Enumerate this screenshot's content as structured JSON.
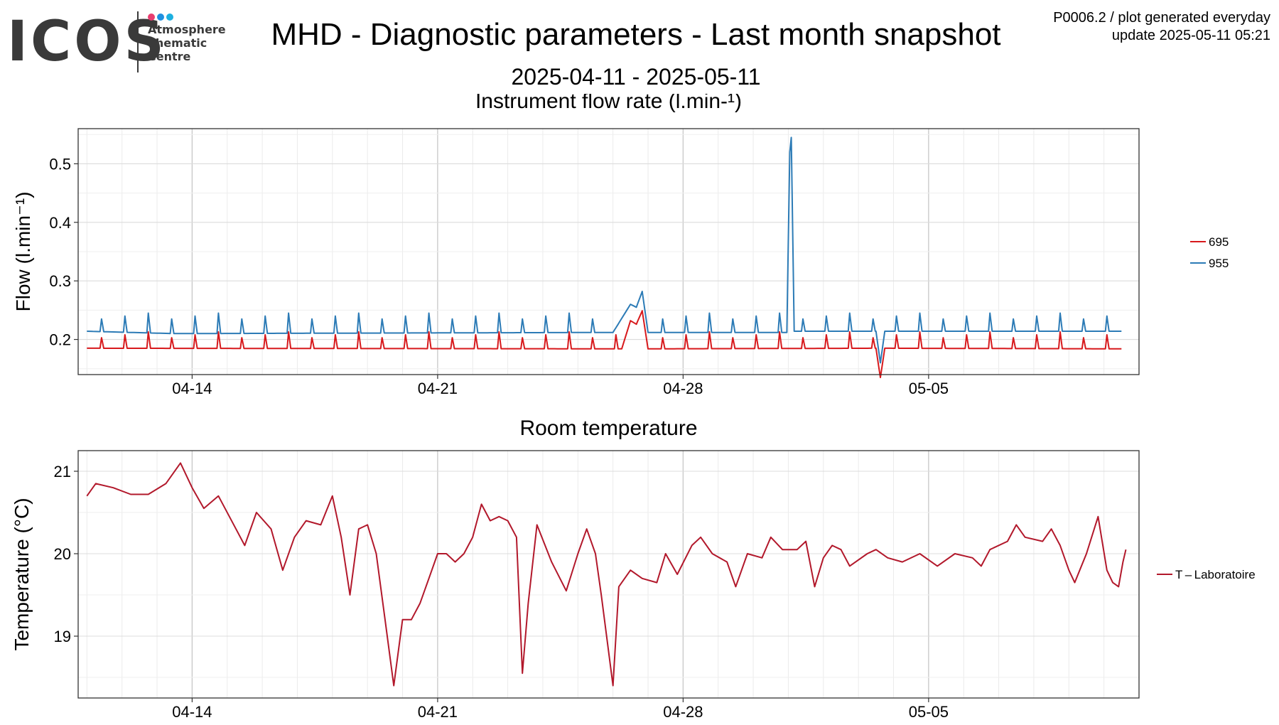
{
  "header": {
    "logo": {
      "text": "ICOS",
      "lines": [
        "Atmosphere",
        "Thematic",
        "Centre"
      ],
      "dot_colors": [
        "#e83e70",
        "#1e90e0",
        "#1cb0e0"
      ]
    },
    "title": "MHD - Diagnostic parameters - Last month snapshot",
    "date_range": "2025-04-11 - 2025-05-11",
    "meta_line1": "P0006.2 / plot generated everyday",
    "meta_line2": "update  2025-05-11 05:21"
  },
  "chart_data": [
    {
      "type": "line",
      "title": "Instrument flow rate (l.min-¹)",
      "xlabel": "",
      "ylabel": "Flow (l.min⁻¹)",
      "x_ticks": [
        "04-14",
        "04-21",
        "04-28",
        "05-05"
      ],
      "y_ticks": [
        "0.2",
        "0.3",
        "0.4",
        "0.5"
      ],
      "xlim": [
        "2025-04-10T18:00",
        "2025-05-11T00:00"
      ],
      "ylim": [
        0.14,
        0.56
      ],
      "grid": true,
      "legend_position": "right",
      "series": [
        {
          "name": "695",
          "color": "#d7191c",
          "base_start": 0.185,
          "base_end": 0.184,
          "spike": 0.208,
          "points": [
            [
              "2025-04-11T00:00",
              0.185
            ],
            [
              "2025-04-26T06:00",
              0.184
            ],
            [
              "2025-04-26T12:00",
              0.232
            ],
            [
              "2025-04-26T16:00",
              0.226
            ],
            [
              "2025-04-26T20:00",
              0.249
            ],
            [
              "2025-04-27T00:00",
              0.184
            ],
            [
              "2025-05-03T12:00",
              0.185
            ],
            [
              "2025-05-03T15:00",
              0.135
            ],
            [
              "2025-05-03T18:00",
              0.185
            ],
            [
              "2025-05-10T12:00",
              0.184
            ]
          ]
        },
        {
          "name": "955",
          "color": "#2c7bb6",
          "base_start": 0.214,
          "base_end": 0.214,
          "spike": 0.24,
          "points": [
            [
              "2025-04-11T00:00",
              0.214
            ],
            [
              "2025-04-13T12:00",
              0.21
            ],
            [
              "2025-04-26T00:00",
              0.212
            ],
            [
              "2025-04-26T12:00",
              0.26
            ],
            [
              "2025-04-26T16:00",
              0.255
            ],
            [
              "2025-04-26T20:00",
              0.282
            ],
            [
              "2025-04-27T00:00",
              0.212
            ],
            [
              "2025-04-30T23:00",
              0.212
            ],
            [
              "2025-05-01T01:00",
              0.52
            ],
            [
              "2025-05-01T02:00",
              0.545
            ],
            [
              "2025-05-01T04:00",
              0.214
            ],
            [
              "2025-05-03T12:00",
              0.214
            ],
            [
              "2025-05-03T15:00",
              0.16
            ],
            [
              "2025-05-03T18:00",
              0.214
            ],
            [
              "2025-05-10T12:00",
              0.214
            ]
          ]
        }
      ]
    },
    {
      "type": "line",
      "title": "Room temperature",
      "xlabel": "",
      "ylabel": "Temperature (°C)",
      "x_ticks": [
        "04-14",
        "04-21",
        "04-28",
        "05-05"
      ],
      "y_ticks": [
        "19",
        "20",
        "21"
      ],
      "xlim": [
        "2025-04-10T18:00",
        "2025-05-11T00:00"
      ],
      "ylim": [
        18.25,
        21.25
      ],
      "grid": true,
      "legend_position": "right",
      "series": [
        {
          "name": "T – Laboratoire",
          "color": "#b2182b",
          "points": [
            [
              "2025-04-11T00:00",
              20.7
            ],
            [
              "2025-04-11T06:00",
              20.85
            ],
            [
              "2025-04-11T18:00",
              20.8
            ],
            [
              "2025-04-12T06:00",
              20.72
            ],
            [
              "2025-04-12T18:00",
              20.72
            ],
            [
              "2025-04-13T06:00",
              20.85
            ],
            [
              "2025-04-13T16:00",
              21.1
            ],
            [
              "2025-04-14T00:00",
              20.8
            ],
            [
              "2025-04-14T08:00",
              20.55
            ],
            [
              "2025-04-14T18:00",
              20.7
            ],
            [
              "2025-04-15T06:00",
              20.3
            ],
            [
              "2025-04-15T12:00",
              20.1
            ],
            [
              "2025-04-15T20:00",
              20.5
            ],
            [
              "2025-04-16T06:00",
              20.3
            ],
            [
              "2025-04-16T14:00",
              19.8
            ],
            [
              "2025-04-16T22:00",
              20.2
            ],
            [
              "2025-04-17T06:00",
              20.4
            ],
            [
              "2025-04-17T16:00",
              20.35
            ],
            [
              "2025-04-18T00:00",
              20.7
            ],
            [
              "2025-04-18T06:00",
              20.2
            ],
            [
              "2025-04-18T12:00",
              19.5
            ],
            [
              "2025-04-18T18:00",
              20.3
            ],
            [
              "2025-04-19T00:00",
              20.35
            ],
            [
              "2025-04-19T06:00",
              20.0
            ],
            [
              "2025-04-19T12:00",
              19.2
            ],
            [
              "2025-04-19T18:00",
              18.4
            ],
            [
              "2025-04-20T00:00",
              19.2
            ],
            [
              "2025-04-20T06:00",
              19.2
            ],
            [
              "2025-04-20T12:00",
              19.4
            ],
            [
              "2025-04-20T18:00",
              19.7
            ],
            [
              "2025-04-21T00:00",
              20.0
            ],
            [
              "2025-04-21T06:00",
              20.0
            ],
            [
              "2025-04-21T12:00",
              19.9
            ],
            [
              "2025-04-21T18:00",
              20.0
            ],
            [
              "2025-04-22T00:00",
              20.2
            ],
            [
              "2025-04-22T06:00",
              20.6
            ],
            [
              "2025-04-22T12:00",
              20.4
            ],
            [
              "2025-04-22T18:00",
              20.45
            ],
            [
              "2025-04-23T00:00",
              20.4
            ],
            [
              "2025-04-23T06:00",
              20.2
            ],
            [
              "2025-04-23T10:00",
              18.55
            ],
            [
              "2025-04-23T14:00",
              19.4
            ],
            [
              "2025-04-23T20:00",
              20.35
            ],
            [
              "2025-04-24T06:00",
              19.9
            ],
            [
              "2025-04-24T16:00",
              19.55
            ],
            [
              "2025-04-25T00:00",
              20.0
            ],
            [
              "2025-04-25T06:00",
              20.3
            ],
            [
              "2025-04-25T12:00",
              20.0
            ],
            [
              "2025-04-25T16:00",
              19.5
            ],
            [
              "2025-04-26T00:00",
              18.4
            ],
            [
              "2025-04-26T04:00",
              19.6
            ],
            [
              "2025-04-26T12:00",
              19.8
            ],
            [
              "2025-04-26T20:00",
              19.7
            ],
            [
              "2025-04-27T06:00",
              19.65
            ],
            [
              "2025-04-27T12:00",
              20.0
            ],
            [
              "2025-04-27T20:00",
              19.75
            ],
            [
              "2025-04-28T06:00",
              20.1
            ],
            [
              "2025-04-28T12:00",
              20.2
            ],
            [
              "2025-04-28T20:00",
              20.0
            ],
            [
              "2025-04-29T06:00",
              19.9
            ],
            [
              "2025-04-29T12:00",
              19.6
            ],
            [
              "2025-04-29T20:00",
              20.0
            ],
            [
              "2025-04-30T06:00",
              19.95
            ],
            [
              "2025-04-30T12:00",
              20.2
            ],
            [
              "2025-04-30T20:00",
              20.05
            ],
            [
              "2025-05-01T06:00",
              20.05
            ],
            [
              "2025-05-01T12:00",
              20.15
            ],
            [
              "2025-05-01T18:00",
              19.6
            ],
            [
              "2025-05-02T00:00",
              19.95
            ],
            [
              "2025-05-02T06:00",
              20.1
            ],
            [
              "2025-05-02T12:00",
              20.05
            ],
            [
              "2025-05-02T18:00",
              19.85
            ],
            [
              "2025-05-03T06:00",
              20.0
            ],
            [
              "2025-05-03T12:00",
              20.05
            ],
            [
              "2025-05-03T20:00",
              19.95
            ],
            [
              "2025-05-04T06:00",
              19.9
            ],
            [
              "2025-05-04T18:00",
              20.0
            ],
            [
              "2025-05-05T06:00",
              19.85
            ],
            [
              "2025-05-05T18:00",
              20.0
            ],
            [
              "2025-05-06T06:00",
              19.95
            ],
            [
              "2025-05-06T12:00",
              19.85
            ],
            [
              "2025-05-06T18:00",
              20.05
            ],
            [
              "2025-05-07T06:00",
              20.15
            ],
            [
              "2025-05-07T12:00",
              20.35
            ],
            [
              "2025-05-07T18:00",
              20.2
            ],
            [
              "2025-05-08T06:00",
              20.15
            ],
            [
              "2025-05-08T12:00",
              20.3
            ],
            [
              "2025-05-08T18:00",
              20.1
            ],
            [
              "2025-05-09T00:00",
              19.8
            ],
            [
              "2025-05-09T04:00",
              19.65
            ],
            [
              "2025-05-09T12:00",
              20.0
            ],
            [
              "2025-05-09T20:00",
              20.45
            ],
            [
              "2025-05-10T02:00",
              19.8
            ],
            [
              "2025-05-10T06:00",
              19.65
            ],
            [
              "2025-05-10T10:00",
              19.6
            ],
            [
              "2025-05-10T13:00",
              19.9
            ],
            [
              "2025-05-10T15:00",
              20.05
            ]
          ]
        }
      ]
    }
  ]
}
